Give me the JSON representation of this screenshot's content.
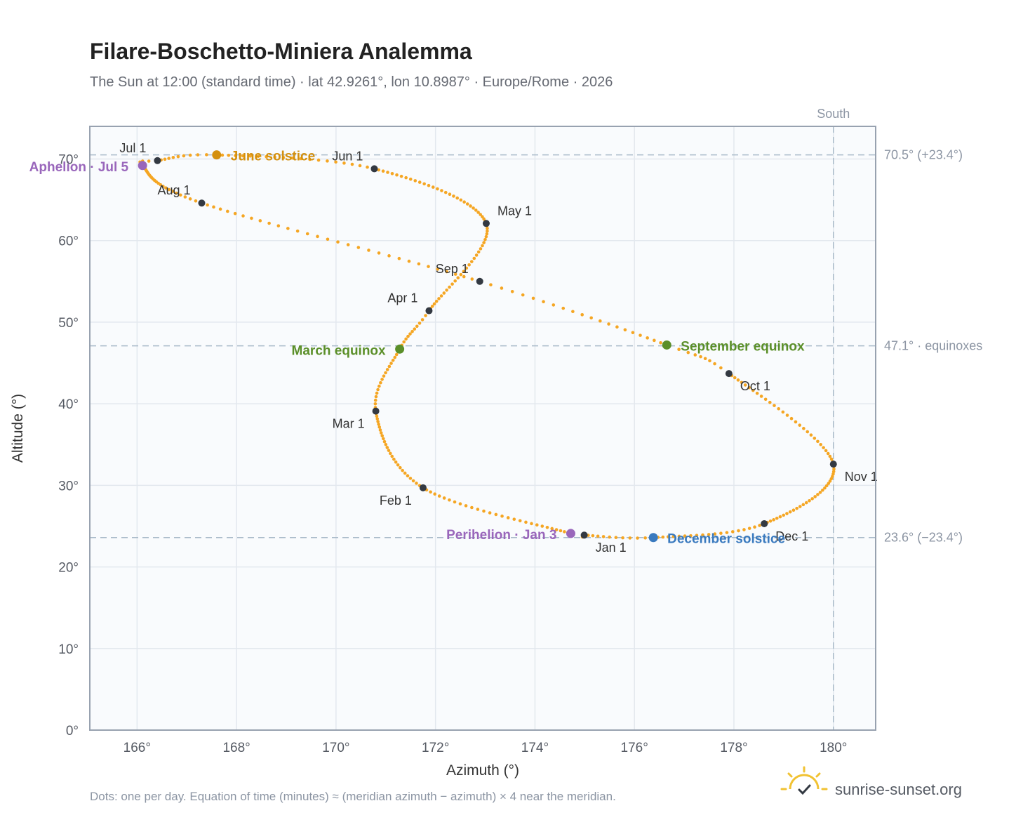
{
  "title": "Filare-Boschetto-Miniera Analemma",
  "subtitle": "The Sun at 12:00 (standard time) · lat 42.9261°, lon 10.8987° · Europe/Rome · 2026",
  "footnote": "Dots: one per day. Equation of time (minutes) ≈ (meridian azimuth − azimuth) × 4 near the meridian.",
  "brand": {
    "name": "sunrise-sunset.org",
    "icon": "sun-logo-icon"
  },
  "colors": {
    "curve": "#f5a623",
    "month_marker": "#333942",
    "solstice_june": "#d4900e",
    "equinox": "#5b8f29",
    "solstice_december": "#3a7abf",
    "perihelion_aphelion": "#9966bb",
    "plot_background": "#f9fbfd",
    "grid": "#e3e8ee",
    "reference_line": "#a9bac9"
  },
  "chart_data": {
    "type": "scatter",
    "xlabel": "Azimuth (°)",
    "ylabel": "Altitude (°)",
    "xlim": [
      165.05,
      180.85
    ],
    "ylim": [
      0,
      74
    ],
    "x_ticks": [
      166,
      168,
      170,
      172,
      174,
      176,
      178,
      180
    ],
    "x_tick_labels": [
      "166°",
      "168°",
      "170°",
      "172°",
      "174°",
      "176°",
      "178°",
      "180°"
    ],
    "y_ticks": [
      0,
      10,
      20,
      30,
      40,
      50,
      60,
      70
    ],
    "y_tick_labels": [
      "0°",
      "10°",
      "20°",
      "30°",
      "40°",
      "50°",
      "60°",
      "70°"
    ],
    "grid": true,
    "series": [
      {
        "description_points": "daily sun positions at 12:00, anchored at listed dates",
        "anchors": [
          {
            "doy": 1,
            "az": 174.99,
            "alt": 23.9
          },
          {
            "doy": 3,
            "az": 174.72,
            "alt": 24.1
          },
          {
            "doy": 32,
            "az": 171.75,
            "alt": 29.7
          },
          {
            "doy": 60,
            "az": 170.8,
            "alt": 39.1
          },
          {
            "doy": 79,
            "az": 171.28,
            "alt": 46.7
          },
          {
            "doy": 91,
            "az": 171.87,
            "alt": 51.4
          },
          {
            "doy": 121,
            "az": 173.02,
            "alt": 62.1
          },
          {
            "doy": 152,
            "az": 170.77,
            "alt": 68.8
          },
          {
            "doy": 172,
            "az": 167.6,
            "alt": 70.5
          },
          {
            "doy": 182,
            "az": 166.41,
            "alt": 69.8
          },
          {
            "doy": 186,
            "az": 166.11,
            "alt": 69.2
          },
          {
            "doy": 213,
            "az": 167.3,
            "alt": 64.6
          },
          {
            "doy": 244,
            "az": 172.89,
            "alt": 55.0
          },
          {
            "doy": 265,
            "az": 176.65,
            "alt": 47.2
          },
          {
            "doy": 274,
            "az": 177.9,
            "alt": 43.7
          },
          {
            "doy": 305,
            "az": 180.0,
            "alt": 32.6
          },
          {
            "doy": 335,
            "az": 178.61,
            "alt": 25.3
          },
          {
            "doy": 355,
            "az": 176.38,
            "alt": 23.6
          },
          {
            "doy": 366,
            "az": 174.99,
            "alt": 23.9
          }
        ]
      }
    ],
    "month_markers": [
      {
        "label": "Jan 1",
        "az": 174.99,
        "alt": 23.9,
        "pos": "below-right"
      },
      {
        "label": "Feb 1",
        "az": 171.75,
        "alt": 29.7,
        "pos": "below-left"
      },
      {
        "label": "Mar 1",
        "az": 170.8,
        "alt": 39.1,
        "pos": "below-left"
      },
      {
        "label": "Apr 1",
        "az": 171.87,
        "alt": 51.4,
        "pos": "above-left"
      },
      {
        "label": "May 1",
        "az": 173.02,
        "alt": 62.1,
        "pos": "above-right"
      },
      {
        "label": "Jun 1",
        "az": 170.77,
        "alt": 68.8,
        "pos": "above-left"
      },
      {
        "label": "Jul 1",
        "az": 166.41,
        "alt": 69.8,
        "pos": "above-left"
      },
      {
        "label": "Aug 1",
        "az": 167.3,
        "alt": 64.6,
        "pos": "above-left"
      },
      {
        "label": "Sep 1",
        "az": 172.89,
        "alt": 55.0,
        "pos": "above-left"
      },
      {
        "label": "Oct 1",
        "az": 177.9,
        "alt": 43.7,
        "pos": "below-right"
      },
      {
        "label": "Nov 1",
        "az": 180.0,
        "alt": 32.6,
        "pos": "below-right"
      },
      {
        "label": "Dec 1",
        "az": 178.61,
        "alt": 25.3,
        "pos": "below-right"
      }
    ],
    "events": [
      {
        "label": "June solstice",
        "az": 167.6,
        "alt": 70.5,
        "color": "#d4900e",
        "side": "right"
      },
      {
        "label": "March equinox",
        "az": 171.28,
        "alt": 46.7,
        "color": "#5b8f29",
        "side": "left"
      },
      {
        "label": "September equinox",
        "az": 176.65,
        "alt": 47.2,
        "color": "#5b8f29",
        "side": "right"
      },
      {
        "label": "December solstice",
        "az": 176.38,
        "alt": 23.6,
        "color": "#3a7abf",
        "side": "right"
      },
      {
        "label": "Perihelion · Jan 3",
        "az": 174.72,
        "alt": 24.1,
        "color": "#9966bb",
        "side": "left"
      },
      {
        "label": "Aphelion · Jul 5",
        "az": 166.11,
        "alt": 69.2,
        "color": "#9966bb",
        "side": "left"
      }
    ],
    "reference_lines": [
      {
        "orientation": "horizontal",
        "value": 70.5,
        "label": "70.5° (+23.4°)"
      },
      {
        "orientation": "horizontal",
        "value": 47.1,
        "label": "47.1° · equinoxes"
      },
      {
        "orientation": "horizontal",
        "value": 23.6,
        "label": "23.6° (−23.4°)"
      },
      {
        "orientation": "vertical",
        "value": 180.0,
        "label": "South"
      }
    ]
  }
}
